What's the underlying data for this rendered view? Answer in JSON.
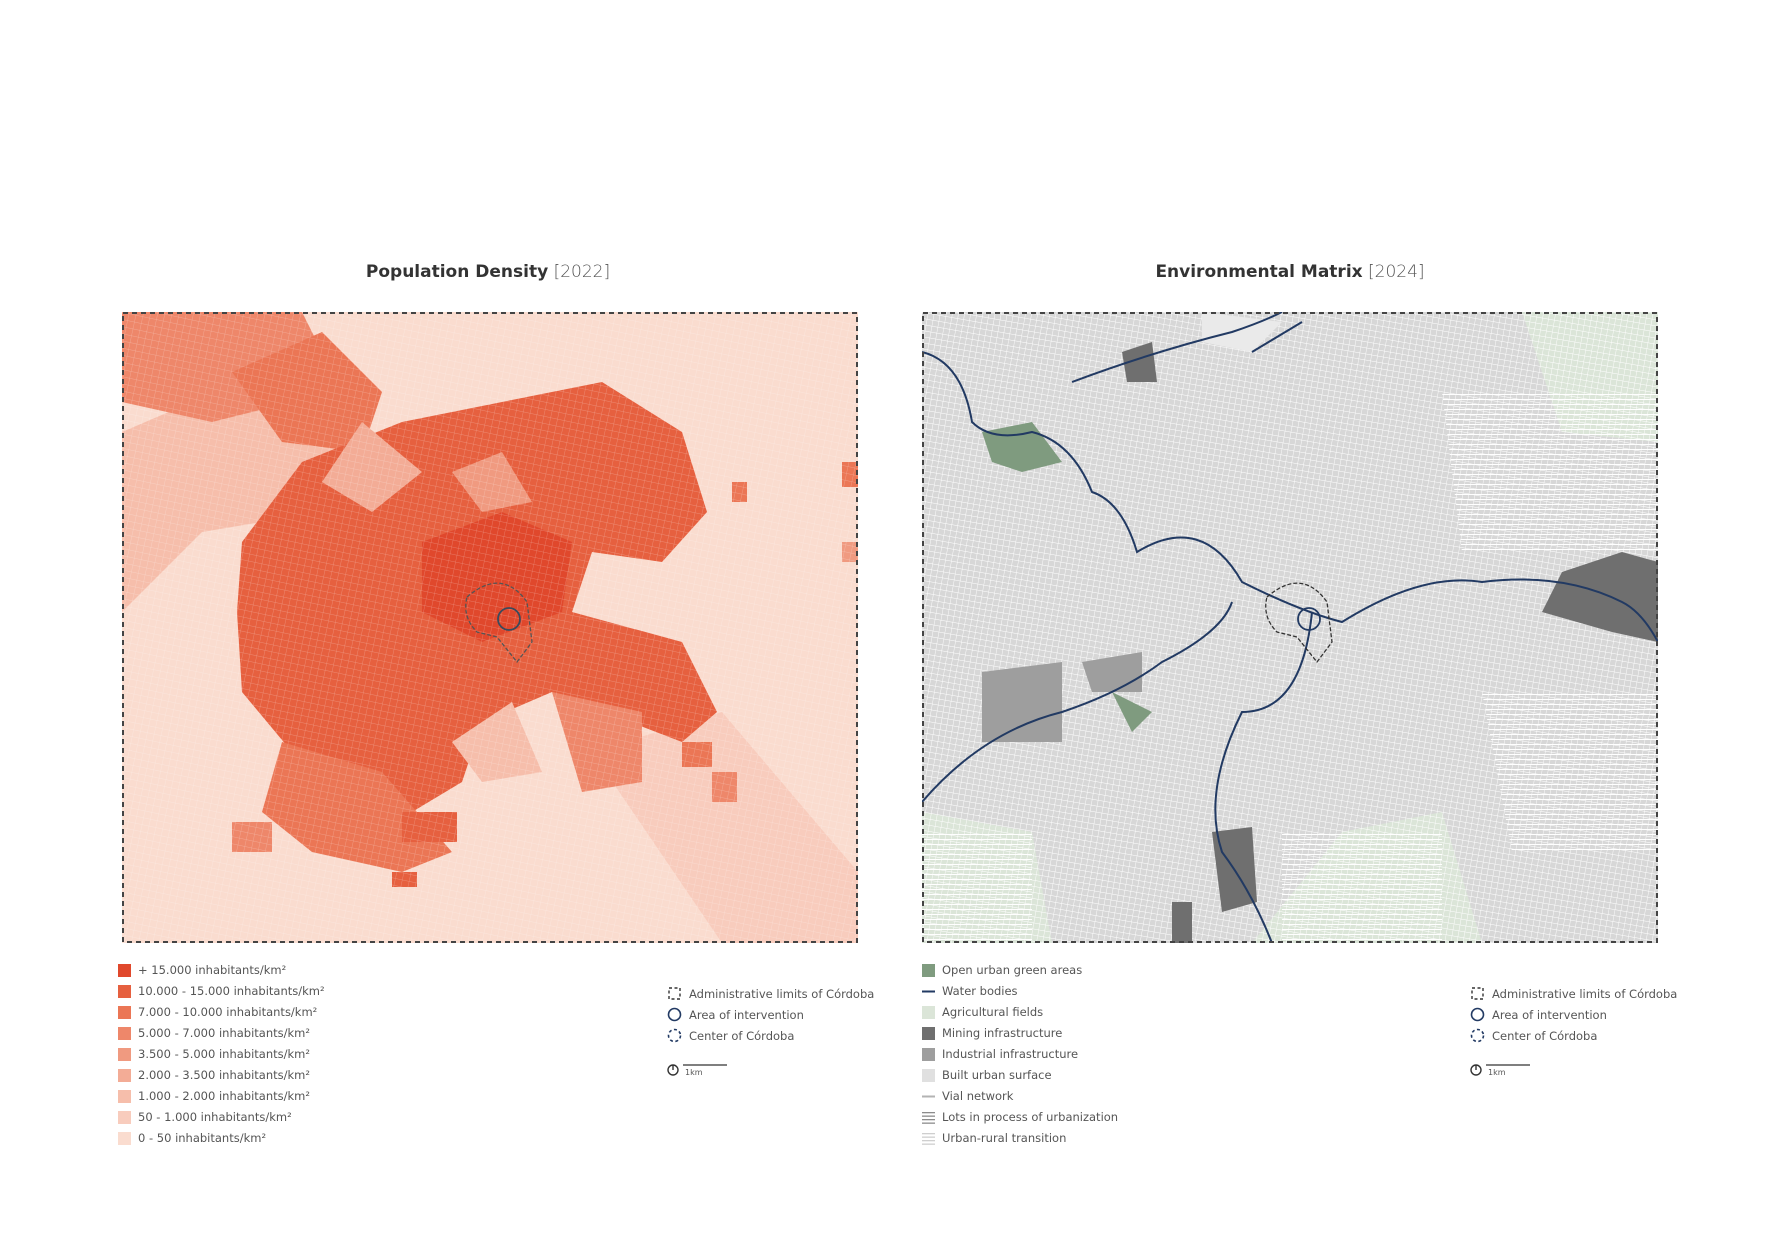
{
  "panels": [
    {
      "title": "Population Density",
      "year": "[2022]",
      "legend": [
        {
          "label": "+ 15.000 inhabitants/km²",
          "color": "#e0482c",
          "style": "square"
        },
        {
          "label": "10.000 - 15.000 inhabitants/km²",
          "color": "#e6603f",
          "style": "square"
        },
        {
          "label": "7.000 - 10.000 inhabitants/km²",
          "color": "#eb7655",
          "style": "square"
        },
        {
          "label": "5.000 - 7.000 inhabitants/km²",
          "color": "#ee876a",
          "style": "square"
        },
        {
          "label": "3.500 - 5.000 inhabitants/km²",
          "color": "#f09a80",
          "style": "square"
        },
        {
          "label": "2.000 - 3.500 inhabitants/km²",
          "color": "#f3ac96",
          "style": "square"
        },
        {
          "label": "1.000 - 2.000 inhabitants/km²",
          "color": "#f6beab",
          "style": "square"
        },
        {
          "label": "50 - 1.000 inhabitants/km²",
          "color": "#f8ccbd",
          "style": "square"
        },
        {
          "label": "0 - 50 inhabitants/km²",
          "color": "#fadccf",
          "style": "square"
        }
      ],
      "symbols": [
        "Administrative limits of Córdoba",
        "Area of intervention",
        "Center of Córdoba"
      ],
      "scale": "1km"
    },
    {
      "title": "Environmental Matrix",
      "year": "[2024]",
      "legend": [
        {
          "label": "Open urban green areas",
          "color": "#7f9b7f",
          "style": "square"
        },
        {
          "label": "Water bodies",
          "color": "#223a63",
          "style": "line"
        },
        {
          "label": "Agricultural fields",
          "color": "#dbe5d8",
          "style": "square"
        },
        {
          "label": "Mining infrastructure",
          "color": "#6f6f6f",
          "style": "square"
        },
        {
          "label": "Industrial infrastructure",
          "color": "#9e9e9e",
          "style": "square"
        },
        {
          "label": "Built urban surface",
          "color": "#e0e0e0",
          "style": "square"
        },
        {
          "label": "Vial network",
          "color": "#b3b3b3",
          "style": "line"
        },
        {
          "label": "Lots in process of urbanization",
          "color": "#8c8c8c",
          "style": "hatch"
        },
        {
          "label": "Urban-rural transition",
          "color": "#cfcfcf",
          "style": "hatch"
        }
      ],
      "symbols": [
        "Administrative limits of Córdoba",
        "Area of intervention",
        "Center of Córdoba"
      ],
      "scale": "1km"
    }
  ]
}
